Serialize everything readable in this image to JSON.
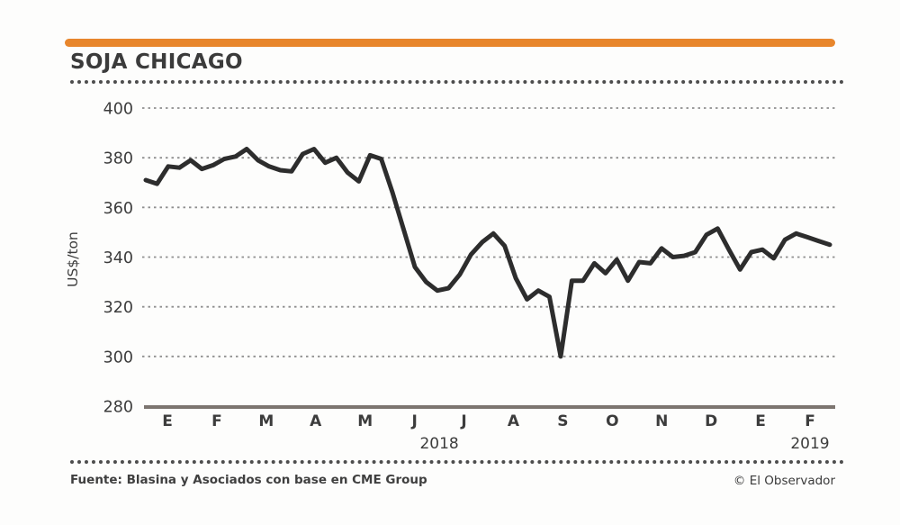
{
  "accent_color": "#E8862C",
  "header": {
    "title": "SOJA CHICAGO"
  },
  "chart_data": {
    "type": "line",
    "title": "SOJA CHICAGO",
    "ylabel": "US$/ton",
    "xlabel": "",
    "ylim": [
      280,
      400
    ],
    "y_ticks": [
      400,
      380,
      360,
      340,
      320,
      300,
      280
    ],
    "x_month_labels": [
      "E",
      "F",
      "M",
      "A",
      "M",
      "J",
      "J",
      "A",
      "S",
      "O",
      "N",
      "D",
      "E",
      "F"
    ],
    "year_labels": [
      {
        "label": "2018",
        "position": "center"
      },
      {
        "label": "2019",
        "position": "right"
      }
    ],
    "grid": "horizontal-dashed",
    "legend_position": "none",
    "line_color": "#2d2d2d",
    "series": [
      {
        "name": "Soja Chicago (US$/ton, semanal)",
        "values": [
          371,
          369.5,
          376.5,
          376,
          379,
          375.5,
          377,
          379.5,
          380.5,
          383.5,
          379,
          376.5,
          375,
          374.5,
          381.5,
          383.5,
          378,
          380,
          374,
          370.5,
          381,
          379.5,
          366,
          351,
          336,
          330,
          326.5,
          327.5,
          333,
          341,
          346,
          349.5,
          344.5,
          331.5,
          323,
          326.5,
          324,
          300,
          330.5,
          330.5,
          337.5,
          333.5,
          339,
          330.5,
          338,
          337.5,
          343.5,
          340,
          340.5,
          342,
          349,
          351.5,
          343,
          335,
          342,
          343,
          339.5,
          347,
          349.5,
          348,
          346.5,
          345
        ]
      }
    ]
  },
  "footer": {
    "source": "Fuente: Blasina y Asociados con base en CME Group",
    "credit": "© El Observador"
  }
}
